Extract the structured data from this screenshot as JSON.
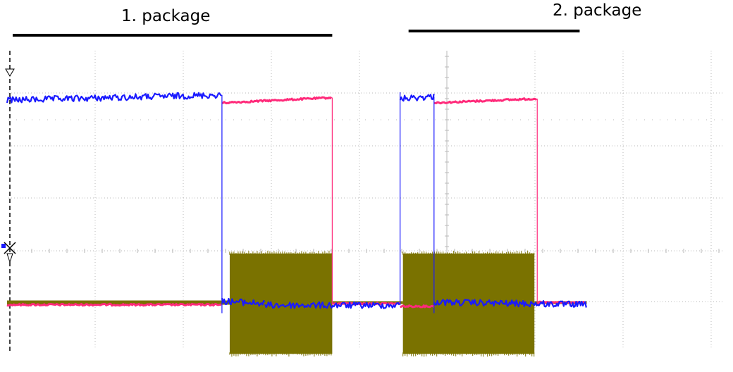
{
  "annotations": {
    "package_1": "1. package",
    "package_2": "2. package"
  },
  "colors": {
    "channel_blue": "#1a1aff",
    "channel_pink": "#ff2a7a",
    "channel_olive": "#7a7200",
    "grid": "#b8b8b8",
    "bracket": "#000000"
  },
  "chart_data": {
    "type": "line",
    "title": "",
    "xlabel": "",
    "ylabel": "",
    "xlim": [
      0,
      10
    ],
    "ylim": [
      0,
      6
    ],
    "grid": true,
    "grid_divisions": {
      "x": 8,
      "y": 5
    },
    "brackets": [
      {
        "label": "1. package",
        "x": [
          0,
          4.6
        ]
      },
      {
        "label": "2. package",
        "x": [
          5.6,
          8.1
        ]
      }
    ],
    "series": [
      {
        "color": "blue",
        "style": "noisy",
        "segments": [
          {
            "x": [
              0.0,
              3.04
            ],
            "y": [
              4.85,
              4.95
            ]
          },
          {
            "x": [
              3.04,
              3.65
            ],
            "y": [
              1.05,
              1.0
            ]
          },
          {
            "x": [
              3.65,
              5.56
            ],
            "y": [
              0.97,
              0.97
            ]
          },
          {
            "x": [
              5.56,
              6.04
            ],
            "y": [
              4.88,
              4.92
            ]
          },
          {
            "x": [
              6.04,
              8.2
            ],
            "y": [
              1.03,
              0.98
            ]
          }
        ],
        "edges": [
          {
            "x": 3.04,
            "y": [
              0.82,
              4.95
            ]
          },
          {
            "x": 5.56,
            "y": [
              0.97,
              5.0
            ]
          },
          {
            "x": 6.04,
            "y": [
              0.82,
              4.92
            ]
          }
        ]
      },
      {
        "color": "pink",
        "style": "clean",
        "segments": [
          {
            "x": [
              0.0,
              3.04
            ],
            "y": [
              0.98,
              0.98
            ]
          },
          {
            "x": [
              3.04,
              4.6
            ],
            "y": [
              4.8,
              4.9
            ]
          },
          {
            "x": [
              4.6,
              5.56
            ],
            "y": [
              1.0,
              1.0
            ]
          },
          {
            "x": [
              5.56,
              6.04
            ],
            "y": [
              0.95,
              0.95
            ]
          },
          {
            "x": [
              6.04,
              7.5
            ],
            "y": [
              4.8,
              4.88
            ]
          },
          {
            "x": [
              7.5,
              8.2
            ],
            "y": [
              1.02,
              1.02
            ]
          }
        ],
        "edges": [
          {
            "x": 4.6,
            "y": [
              1.0,
              4.9
            ]
          },
          {
            "x": 7.5,
            "y": [
              1.02,
              4.88
            ]
          }
        ]
      },
      {
        "color": "olive",
        "style": "burst",
        "baseline": 1.02,
        "bursts": [
          {
            "x": [
              3.15,
              4.6
            ],
            "y": [
              0.05,
              1.95
            ]
          },
          {
            "x": [
              5.6,
              7.46
            ],
            "y": [
              0.05,
              1.95
            ]
          }
        ]
      }
    ]
  }
}
